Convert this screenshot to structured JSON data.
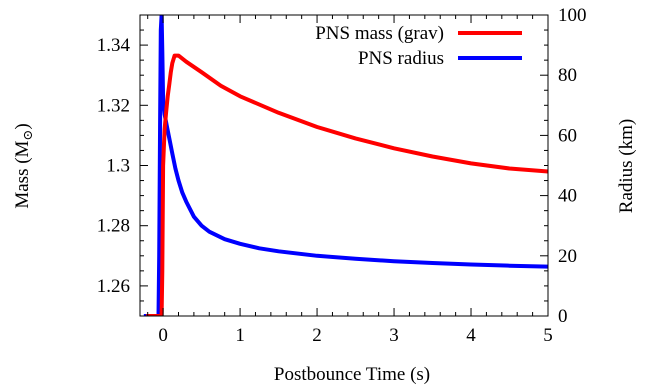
{
  "chart_data": {
    "type": "line",
    "title": "",
    "xlabel": "Postbounce Time (s)",
    "ylabel_left": "Mass (M",
    "ylabel_left_sub": "⊙",
    "ylabel_left_close": ")",
    "ylabel_right": "Radius (km)",
    "xlim": [
      -0.3,
      5
    ],
    "ylim_left": [
      1.25,
      1.35
    ],
    "ylim_right": [
      0,
      100
    ],
    "grid": false,
    "legend_position": "top-right",
    "x_ticks": [
      0,
      1,
      2,
      3,
      4,
      5
    ],
    "x_tick_labels": [
      "0",
      "1",
      "2",
      "3",
      "4",
      "5"
    ],
    "y_left_ticks": [
      1.26,
      1.28,
      1.3,
      1.32,
      1.34
    ],
    "y_left_tick_labels": [
      "1.26",
      "1.28",
      "1.3",
      "1.32",
      "1.34"
    ],
    "y_right_ticks": [
      0,
      20,
      40,
      60,
      80,
      100
    ],
    "y_right_tick_labels": [
      "0",
      "20",
      "40",
      "60",
      "80",
      "100"
    ],
    "series": [
      {
        "name": "PNS mass (grav)",
        "axis": "left",
        "color": "#ff0000",
        "x": [
          -0.22,
          -0.02,
          -0.01,
          0.0,
          0.02,
          0.04,
          0.06,
          0.08,
          0.1,
          0.12,
          0.15,
          0.2,
          0.3,
          0.5,
          0.75,
          1.0,
          1.5,
          2.0,
          2.5,
          3.0,
          3.5,
          4.0,
          4.5,
          5.0
        ],
        "y": [
          1.25,
          1.25,
          1.265,
          1.3,
          1.312,
          1.318,
          1.323,
          1.327,
          1.331,
          1.334,
          1.3365,
          1.3365,
          1.3345,
          1.331,
          1.3265,
          1.323,
          1.3175,
          1.3128,
          1.309,
          1.3057,
          1.303,
          1.3007,
          1.299,
          1.298
        ]
      },
      {
        "name": "PNS radius",
        "axis": "right",
        "color": "#0000ff",
        "x": [
          -0.25,
          -0.06,
          -0.05,
          -0.04,
          -0.03,
          -0.02,
          -0.01,
          0.0,
          0.02,
          0.05,
          0.08,
          0.12,
          0.16,
          0.2,
          0.25,
          0.3,
          0.4,
          0.5,
          0.6,
          0.8,
          1.0,
          1.25,
          1.5,
          2.0,
          2.5,
          3.0,
          3.5,
          4.0,
          4.5,
          5.0
        ],
        "y": [
          0,
          0,
          20,
          60,
          95,
          100,
          88,
          72,
          67,
          63,
          59,
          54,
          49,
          45,
          41,
          38,
          33,
          30,
          28,
          25.5,
          24,
          22.5,
          21.5,
          20,
          19,
          18.2,
          17.6,
          17.1,
          16.7,
          16.4
        ]
      }
    ]
  }
}
